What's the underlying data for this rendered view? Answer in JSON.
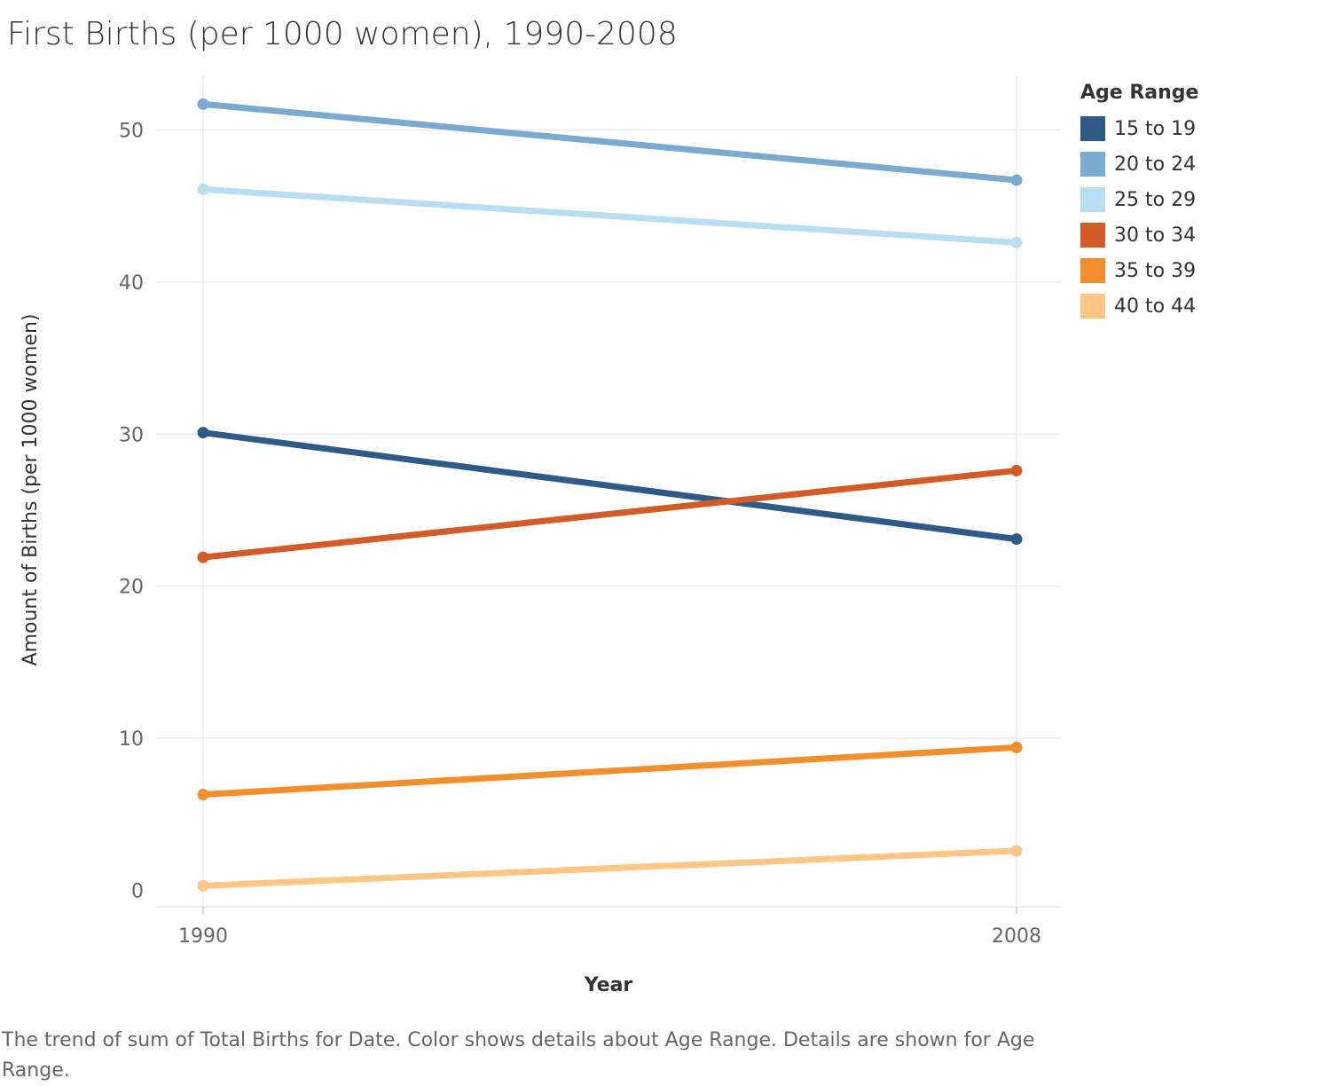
{
  "title": "First Births (per 1000 women), 1990-2008",
  "caption": "The trend of sum of Total Births for Date.  Color shows details about Age Range.  Details are shown for Age Range.",
  "legend": {
    "title": "Age Range"
  },
  "chart_data": {
    "type": "line",
    "title": "First Births (per 1000 women), 1990-2008",
    "xlabel": "Year",
    "ylabel": "Amount of Births (per 1000 women)",
    "x": [
      1990,
      2008
    ],
    "x_tick_labels": [
      "1990",
      "2008"
    ],
    "y_ticks": [
      0,
      10,
      20,
      30,
      40,
      50
    ],
    "ylim": [
      -1,
      54.5
    ],
    "grid": true,
    "legend_position": "right",
    "series": [
      {
        "name": "15 to 19",
        "color": "#2e5a87",
        "values": [
          30.1,
          23.1
        ]
      },
      {
        "name": "20 to 24",
        "color": "#7aaad0",
        "values": [
          51.7,
          46.7
        ]
      },
      {
        "name": "25 to 29",
        "color": "#b9ddf1",
        "values": [
          46.1,
          42.6
        ]
      },
      {
        "name": "30 to 34",
        "color": "#d35b26",
        "values": [
          21.9,
          27.6
        ]
      },
      {
        "name": "35 to 39",
        "color": "#f28e2b",
        "values": [
          6.3,
          9.4
        ]
      },
      {
        "name": "40 to 44",
        "color": "#ffc685",
        "values": [
          0.3,
          2.6
        ]
      }
    ]
  }
}
